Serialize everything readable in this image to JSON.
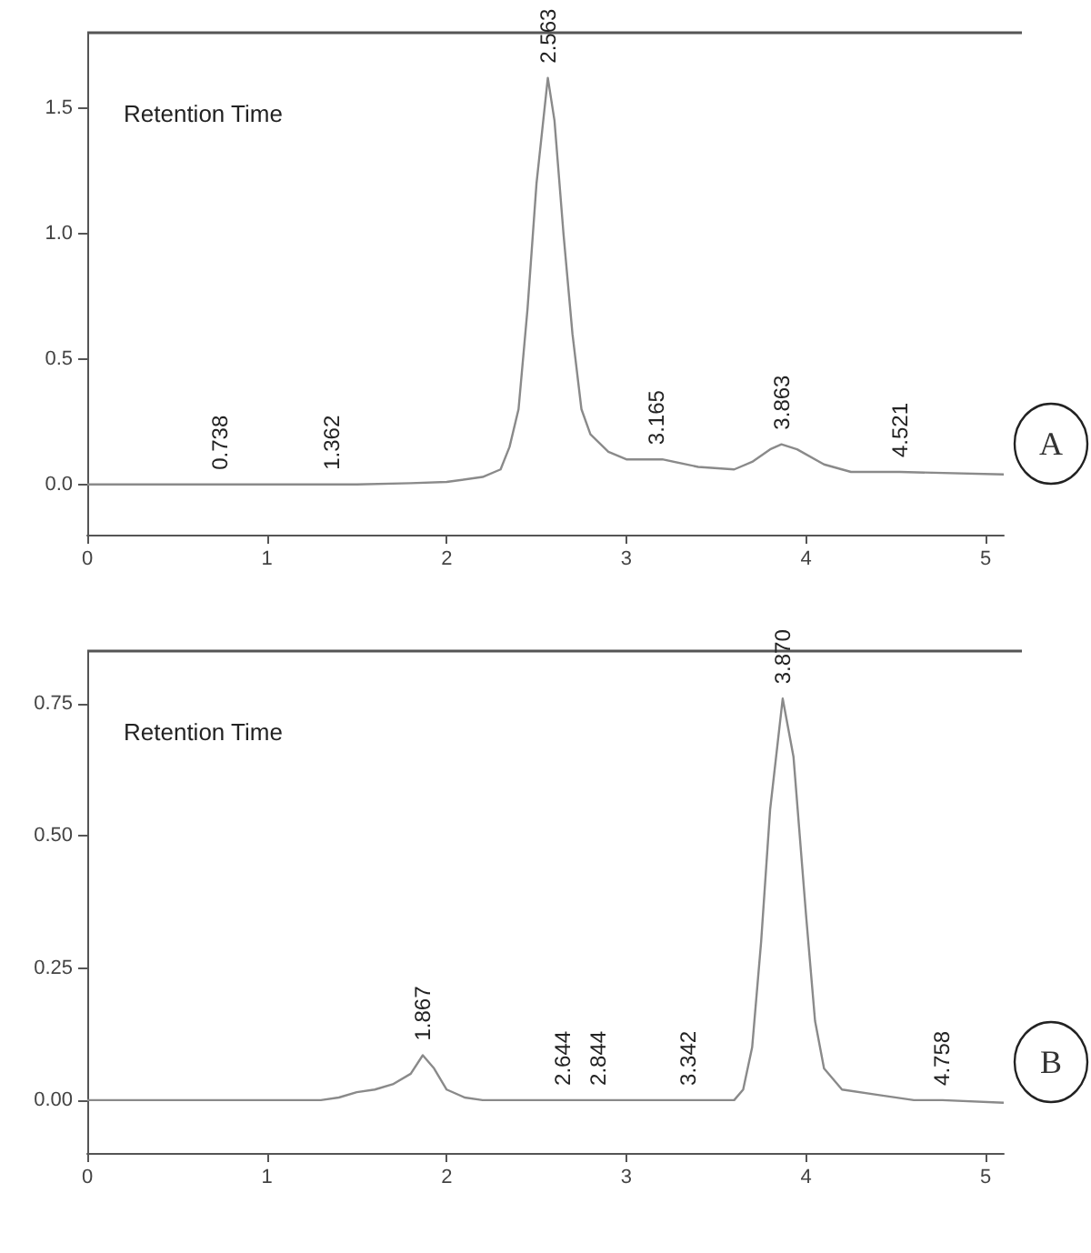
{
  "chart_data": [
    {
      "type": "line",
      "marker": "none",
      "xlim": [
        0,
        5.1
      ],
      "ylim": [
        -0.2,
        1.8
      ],
      "xticks": [
        0,
        1,
        2,
        3,
        4,
        5
      ],
      "yticks": [
        {
          "value": 0,
          "label": "0.0"
        },
        {
          "value": 0.5,
          "label": "0.5"
        },
        {
          "value": 1,
          "label": "1.0"
        },
        {
          "value": 1.5,
          "label": "1.5"
        }
      ],
      "series": [
        {
          "color": "#8a8a8a",
          "x": [
            0,
            0.5,
            0.738,
            1.0,
            1.362,
            1.5,
            1.8,
            2.0,
            2.2,
            2.3,
            2.35,
            2.4,
            2.45,
            2.5,
            2.563,
            2.6,
            2.65,
            2.7,
            2.75,
            2.8,
            2.9,
            3.0,
            3.165,
            3.2,
            3.4,
            3.6,
            3.7,
            3.8,
            3.863,
            3.95,
            4.1,
            4.25,
            4.521,
            5.1
          ],
          "values": [
            0,
            0,
            0,
            0,
            0,
            0,
            0.005,
            0.01,
            0.03,
            0.06,
            0.15,
            0.3,
            0.7,
            1.2,
            1.62,
            1.45,
            1.0,
            0.6,
            0.3,
            0.2,
            0.13,
            0.1,
            0.1,
            0.1,
            0.07,
            0.06,
            0.09,
            0.14,
            0.16,
            0.14,
            0.08,
            0.05,
            0.05,
            0.04
          ]
        }
      ],
      "annotations": [
        "Retention Time",
        "A",
        {
          "text": "0.738",
          "x": 0.738,
          "y": 0
        },
        {
          "text": "1.362",
          "x": 1.362,
          "y": 0
        },
        {
          "text": "2.563",
          "x": 2.563,
          "y": 1.62
        },
        {
          "text": "3.165",
          "x": 3.165,
          "y": 0.1
        },
        {
          "text": "3.863",
          "x": 3.863,
          "y": 0.16
        },
        {
          "text": "4.521",
          "x": 4.521,
          "y": 0.05
        }
      ]
    },
    {
      "type": "line",
      "marker": "none",
      "xlim": [
        0,
        5.1
      ],
      "ylim": [
        -0.1,
        0.85
      ],
      "xticks": [
        0,
        1,
        2,
        3,
        4,
        5
      ],
      "yticks": [
        {
          "value": 0,
          "label": "0.00"
        },
        {
          "value": 0.25,
          "label": "0.25"
        },
        {
          "value": 0.5,
          "label": "0.50"
        },
        {
          "value": 0.75,
          "label": "0.75"
        }
      ],
      "series": [
        {
          "color": "#8a8a8a",
          "x": [
            0,
            1.0,
            1.3,
            1.4,
            1.5,
            1.6,
            1.7,
            1.8,
            1.867,
            1.93,
            2.0,
            2.1,
            2.2,
            2.644,
            2.844,
            3.0,
            3.342,
            3.6,
            3.65,
            3.7,
            3.75,
            3.8,
            3.87,
            3.93,
            4.0,
            4.05,
            4.1,
            4.2,
            4.4,
            4.6,
            4.758,
            5.1
          ],
          "values": [
            0,
            0,
            0,
            0.005,
            0.015,
            0.02,
            0.03,
            0.05,
            0.085,
            0.06,
            0.02,
            0.005,
            0,
            0,
            0,
            0,
            0,
            0,
            0.02,
            0.1,
            0.3,
            0.55,
            0.76,
            0.65,
            0.35,
            0.15,
            0.06,
            0.02,
            0.01,
            0,
            0,
            -0.005
          ]
        }
      ],
      "annotations": [
        "Retention Time",
        "B",
        {
          "text": "1.867",
          "x": 1.867,
          "y": 0.085
        },
        {
          "text": "2.644",
          "x": 2.644,
          "y": 0
        },
        {
          "text": "2.844",
          "x": 2.844,
          "y": 0
        },
        {
          "text": "3.342",
          "x": 3.342,
          "y": 0
        },
        {
          "text": "3.870",
          "x": 3.87,
          "y": 0.76
        },
        {
          "text": "4.758",
          "x": 4.758,
          "y": 0
        }
      ]
    }
  ]
}
